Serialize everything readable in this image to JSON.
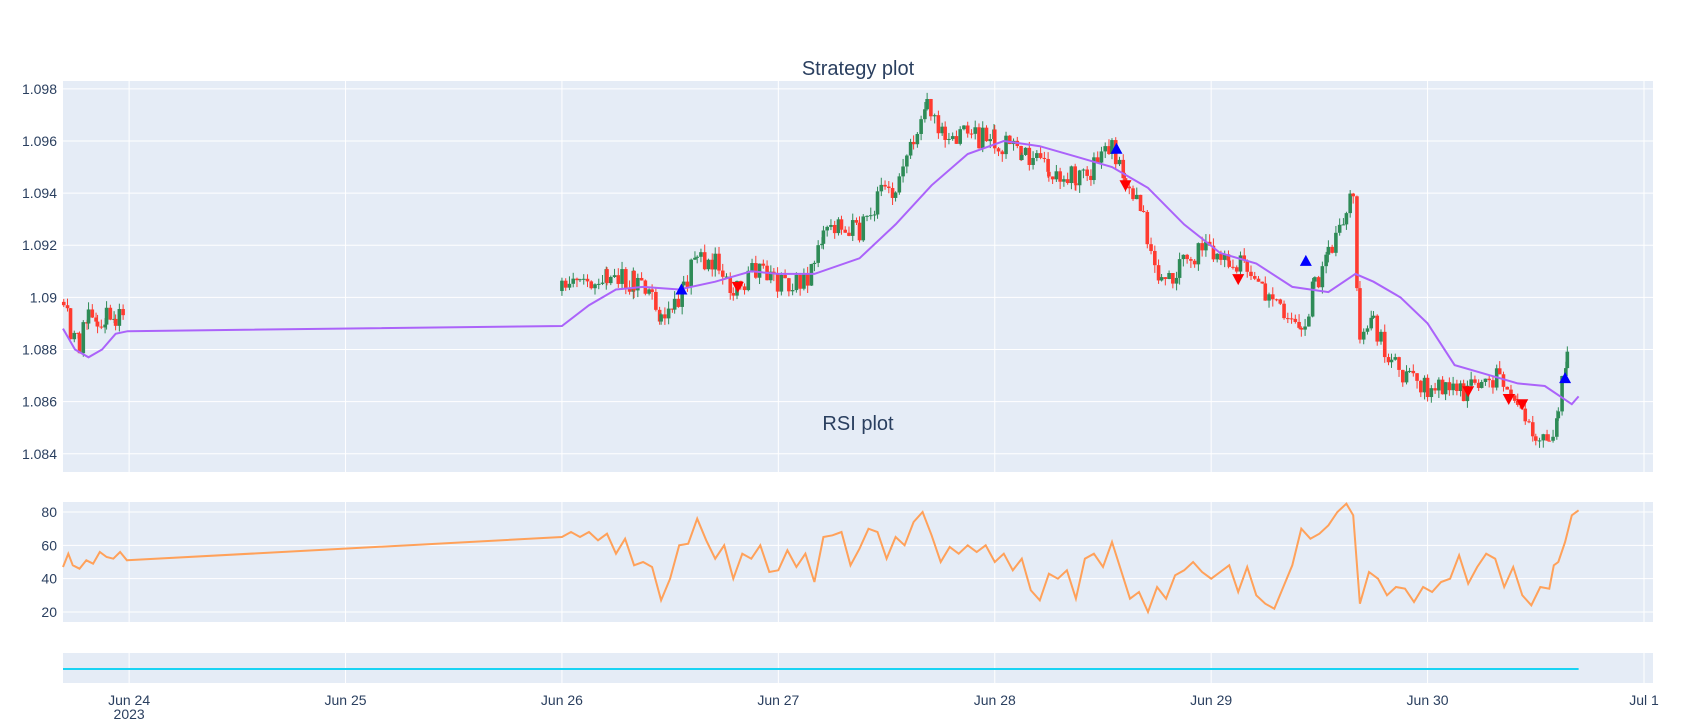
{
  "chart_data": [
    {
      "type": "candlestick",
      "title": "Strategy plot",
      "ylim": [
        1.0833,
        1.0983
      ],
      "y_ticks": [
        "1.084",
        "1.086",
        "1.088",
        "1.09",
        "1.092",
        "1.094",
        "1.096",
        "1.098"
      ],
      "y_tick_values": [
        1.084,
        1.086,
        1.088,
        1.09,
        1.092,
        1.094,
        1.096,
        1.098
      ],
      "x_range": [
        "2023-06-23 16:40",
        "2023-07-01 01:00"
      ],
      "grid": true,
      "colors": {
        "up": "#2e8b57",
        "down": "#ff3b30",
        "ma": "#ab63fa",
        "buy": "#0000ff",
        "sell": "#ff0000"
      },
      "price_path": [
        [
          "2023-06-23 16:45",
          1.09
        ],
        [
          "2023-06-23 17:30",
          1.0885
        ],
        [
          "2023-06-23 18:30",
          1.0882
        ],
        [
          "2023-06-23 19:30",
          1.0893
        ],
        [
          "2023-06-23 20:30",
          1.0891
        ],
        [
          "2023-06-23 21:30",
          1.0892
        ],
        [
          "2023-06-23 22:30",
          1.0893
        ],
        [
          "2023-06-23 23:45",
          1.0892
        ],
        [
          "2023-06-26 00:00",
          1.0902
        ],
        [
          "2023-06-26 02:00",
          1.0905
        ],
        [
          "2023-06-26 05:00",
          1.0907
        ],
        [
          "2023-06-26 08:00",
          1.0906
        ],
        [
          "2023-06-26 10:00",
          1.09
        ],
        [
          "2023-06-26 11:00",
          1.089
        ],
        [
          "2023-06-26 12:30",
          1.0897
        ],
        [
          "2023-06-26 13:30",
          1.0904
        ],
        [
          "2023-06-26 15:00",
          1.0916
        ],
        [
          "2023-06-26 17:00",
          1.0913
        ],
        [
          "2023-06-26 19:00",
          1.0904
        ],
        [
          "2023-06-26 21:30",
          1.091
        ],
        [
          "2023-06-26 23:30",
          1.0906
        ],
        [
          "2023-06-27 02:00",
          1.0907
        ],
        [
          "2023-06-27 04:00",
          1.091
        ],
        [
          "2023-06-27 05:00",
          1.0925
        ],
        [
          "2023-06-27 07:00",
          1.0927
        ],
        [
          "2023-06-27 09:00",
          1.0925
        ],
        [
          "2023-06-27 11:00",
          1.0938
        ],
        [
          "2023-06-27 13:00",
          1.0943
        ],
        [
          "2023-06-27 15:00",
          1.0962
        ],
        [
          "2023-06-27 16:30",
          1.0972
        ],
        [
          "2023-06-27 18:30",
          1.096
        ],
        [
          "2023-06-27 21:00",
          1.0962
        ],
        [
          "2023-06-28 00:00",
          1.0961
        ],
        [
          "2023-06-28 03:00",
          1.0955
        ],
        [
          "2023-06-28 06:00",
          1.095
        ],
        [
          "2023-06-28 09:00",
          1.0945
        ],
        [
          "2023-06-28 11:00",
          1.095
        ],
        [
          "2023-06-28 13:00",
          1.0958
        ],
        [
          "2023-06-28 14:30",
          1.0943
        ],
        [
          "2023-06-28 16:30",
          1.093
        ],
        [
          "2023-06-28 18:30",
          1.0905
        ],
        [
          "2023-06-28 20:30",
          1.0912
        ],
        [
          "2023-06-28 23:00",
          1.0918
        ],
        [
          "2023-06-29 02:00",
          1.0912
        ],
        [
          "2023-06-29 04:00",
          1.0913
        ],
        [
          "2023-06-29 06:00",
          1.0903
        ],
        [
          "2023-06-29 08:30",
          1.089
        ],
        [
          "2023-06-29 10:00",
          1.0886
        ],
        [
          "2023-06-29 11:30",
          1.0905
        ],
        [
          "2023-06-29 13:00",
          1.0915
        ],
        [
          "2023-06-29 15:00",
          1.0935
        ],
        [
          "2023-06-29 15:45",
          1.094
        ],
        [
          "2023-06-29 16:30",
          1.088
        ],
        [
          "2023-06-29 18:00",
          1.089
        ],
        [
          "2023-06-29 20:00",
          1.0875
        ],
        [
          "2023-06-29 22:00",
          1.087
        ],
        [
          "2023-06-30 00:00",
          1.0864
        ],
        [
          "2023-06-30 02:00",
          1.0865
        ],
        [
          "2023-06-30 04:00",
          1.0864
        ],
        [
          "2023-06-30 06:00",
          1.0868
        ],
        [
          "2023-06-30 08:00",
          1.087
        ],
        [
          "2023-06-30 10:00",
          1.0862
        ],
        [
          "2023-06-30 12:00",
          1.0845
        ],
        [
          "2023-06-30 13:30",
          1.0842
        ],
        [
          "2023-06-30 14:30",
          1.0855
        ],
        [
          "2023-06-30 15:30",
          1.088
        ],
        [
          "2023-06-30 15:45",
          1.0905
        ]
      ],
      "moving_average": {
        "name": "",
        "points": [
          [
            "2023-06-23 16:40",
            1.0888
          ],
          [
            "2023-06-23 18:00",
            1.088
          ],
          [
            "2023-06-23 19:30",
            1.0877
          ],
          [
            "2023-06-23 21:00",
            1.088
          ],
          [
            "2023-06-23 22:30",
            1.0886
          ],
          [
            "2023-06-23 23:50",
            1.0887
          ],
          [
            "2023-06-26 00:00",
            1.0889
          ],
          [
            "2023-06-26 03:00",
            1.0897
          ],
          [
            "2023-06-26 06:00",
            1.0903
          ],
          [
            "2023-06-26 09:00",
            1.0904
          ],
          [
            "2023-06-26 13:00",
            1.0903
          ],
          [
            "2023-06-26 17:00",
            1.0906
          ],
          [
            "2023-06-26 21:00",
            1.091
          ],
          [
            "2023-06-27 00:00",
            1.0909
          ],
          [
            "2023-06-27 04:00",
            1.0909
          ],
          [
            "2023-06-27 09:00",
            1.0915
          ],
          [
            "2023-06-27 13:00",
            1.0928
          ],
          [
            "2023-06-27 17:00",
            1.0943
          ],
          [
            "2023-06-27 21:00",
            1.0955
          ],
          [
            "2023-06-28 01:00",
            1.096
          ],
          [
            "2023-06-28 05:00",
            1.0958
          ],
          [
            "2023-06-28 09:00",
            1.0954
          ],
          [
            "2023-06-28 13:00",
            1.095
          ],
          [
            "2023-06-28 17:00",
            1.0942
          ],
          [
            "2023-06-28 21:00",
            1.0928
          ],
          [
            "2023-06-29 01:00",
            1.0917
          ],
          [
            "2023-06-29 05:00",
            1.0913
          ],
          [
            "2023-06-29 09:00",
            1.0904
          ],
          [
            "2023-06-29 13:00",
            1.0902
          ],
          [
            "2023-06-29 16:00",
            1.0909
          ],
          [
            "2023-06-29 18:00",
            1.0906
          ],
          [
            "2023-06-29 21:00",
            1.09
          ],
          [
            "2023-06-30 00:00",
            1.089
          ],
          [
            "2023-06-30 03:00",
            1.0874
          ],
          [
            "2023-06-30 06:00",
            1.0871
          ],
          [
            "2023-06-30 10:00",
            1.0867
          ],
          [
            "2023-06-30 13:00",
            1.0866
          ],
          [
            "2023-06-30 16:00",
            1.0859
          ],
          [
            "2023-06-30 16:45",
            1.0862
          ]
        ]
      },
      "signals": [
        {
          "type": "buy",
          "time": "2023-06-26 13:15",
          "price": 1.0903
        },
        {
          "type": "sell",
          "time": "2023-06-26 19:30",
          "price": 1.0904
        },
        {
          "type": "buy",
          "time": "2023-06-28 13:30",
          "price": 1.0957
        },
        {
          "type": "sell",
          "time": "2023-06-28 14:30",
          "price": 1.0943
        },
        {
          "type": "sell",
          "time": "2023-06-29 03:00",
          "price": 1.0907
        },
        {
          "type": "buy",
          "time": "2023-06-29 10:30",
          "price": 1.0914
        },
        {
          "type": "sell",
          "time": "2023-06-30 04:30",
          "price": 1.0864
        },
        {
          "type": "sell",
          "time": "2023-06-30 09:00",
          "price": 1.0861
        },
        {
          "type": "sell",
          "time": "2023-06-30 10:30",
          "price": 1.0859
        },
        {
          "type": "buy",
          "time": "2023-06-30 15:15",
          "price": 1.0869
        }
      ]
    },
    {
      "type": "line",
      "title": "RSI plot",
      "ylim": [
        14,
        86
      ],
      "y_ticks": [
        "20",
        "40",
        "60",
        "80"
      ],
      "y_tick_values": [
        20,
        40,
        60,
        80
      ],
      "grid": true,
      "color": "#ffa15a",
      "points": [
        [
          "2023-06-23 16:40",
          47
        ],
        [
          "2023-06-23 17:15",
          55
        ],
        [
          "2023-06-23 17:45",
          48
        ],
        [
          "2023-06-23 18:30",
          46
        ],
        [
          "2023-06-23 19:15",
          51
        ],
        [
          "2023-06-23 20:00",
          49
        ],
        [
          "2023-06-23 20:45",
          56
        ],
        [
          "2023-06-23 21:30",
          53
        ],
        [
          "2023-06-23 22:15",
          52
        ],
        [
          "2023-06-23 23:00",
          56
        ],
        [
          "2023-06-23 23:45",
          51
        ],
        [
          "2023-06-26 00:00",
          65
        ],
        [
          "2023-06-26 01:00",
          68
        ],
        [
          "2023-06-26 02:00",
          65
        ],
        [
          "2023-06-26 03:00",
          68
        ],
        [
          "2023-06-26 04:00",
          63
        ],
        [
          "2023-06-26 05:00",
          67
        ],
        [
          "2023-06-26 06:00",
          55
        ],
        [
          "2023-06-26 07:00",
          64
        ],
        [
          "2023-06-26 08:00",
          48
        ],
        [
          "2023-06-26 09:00",
          50
        ],
        [
          "2023-06-26 10:00",
          47
        ],
        [
          "2023-06-26 11:00",
          27
        ],
        [
          "2023-06-26 12:00",
          40
        ],
        [
          "2023-06-26 13:00",
          60
        ],
        [
          "2023-06-26 14:00",
          61
        ],
        [
          "2023-06-26 15:00",
          76
        ],
        [
          "2023-06-26 16:00",
          63
        ],
        [
          "2023-06-26 17:00",
          52
        ],
        [
          "2023-06-26 18:00",
          60
        ],
        [
          "2023-06-26 19:00",
          40
        ],
        [
          "2023-06-26 20:00",
          55
        ],
        [
          "2023-06-26 21:00",
          52
        ],
        [
          "2023-06-26 22:00",
          60
        ],
        [
          "2023-06-26 23:00",
          44
        ],
        [
          "2023-06-27 00:00",
          45
        ],
        [
          "2023-06-27 01:00",
          57
        ],
        [
          "2023-06-27 02:00",
          47
        ],
        [
          "2023-06-27 03:00",
          55
        ],
        [
          "2023-06-27 04:00",
          38
        ],
        [
          "2023-06-27 05:00",
          65
        ],
        [
          "2023-06-27 06:00",
          66
        ],
        [
          "2023-06-27 07:00",
          68
        ],
        [
          "2023-06-27 08:00",
          48
        ],
        [
          "2023-06-27 09:00",
          58
        ],
        [
          "2023-06-27 10:00",
          70
        ],
        [
          "2023-06-27 11:00",
          68
        ],
        [
          "2023-06-27 12:00",
          52
        ],
        [
          "2023-06-27 13:00",
          65
        ],
        [
          "2023-06-27 14:00",
          60
        ],
        [
          "2023-06-27 15:00",
          74
        ],
        [
          "2023-06-27 16:00",
          80
        ],
        [
          "2023-06-27 17:00",
          66
        ],
        [
          "2023-06-27 18:00",
          50
        ],
        [
          "2023-06-27 19:00",
          59
        ],
        [
          "2023-06-27 20:00",
          55
        ],
        [
          "2023-06-27 21:00",
          60
        ],
        [
          "2023-06-27 22:00",
          56
        ],
        [
          "2023-06-27 23:00",
          60
        ],
        [
          "2023-06-28 00:00",
          50
        ],
        [
          "2023-06-28 01:00",
          55
        ],
        [
          "2023-06-28 02:00",
          45
        ],
        [
          "2023-06-28 03:00",
          52
        ],
        [
          "2023-06-28 04:00",
          33
        ],
        [
          "2023-06-28 05:00",
          27
        ],
        [
          "2023-06-28 06:00",
          43
        ],
        [
          "2023-06-28 07:00",
          40
        ],
        [
          "2023-06-28 08:00",
          45
        ],
        [
          "2023-06-28 09:00",
          28
        ],
        [
          "2023-06-28 10:00",
          52
        ],
        [
          "2023-06-28 11:00",
          55
        ],
        [
          "2023-06-28 12:00",
          47
        ],
        [
          "2023-06-28 13:00",
          62
        ],
        [
          "2023-06-28 14:00",
          45
        ],
        [
          "2023-06-28 15:00",
          28
        ],
        [
          "2023-06-28 16:00",
          32
        ],
        [
          "2023-06-28 17:00",
          20
        ],
        [
          "2023-06-28 18:00",
          35
        ],
        [
          "2023-06-28 19:00",
          28
        ],
        [
          "2023-06-28 20:00",
          42
        ],
        [
          "2023-06-28 21:00",
          45
        ],
        [
          "2023-06-28 22:00",
          50
        ],
        [
          "2023-06-28 23:00",
          44
        ],
        [
          "2023-06-29 00:00",
          40
        ],
        [
          "2023-06-29 01:00",
          44
        ],
        [
          "2023-06-29 02:00",
          48
        ],
        [
          "2023-06-29 03:00",
          32
        ],
        [
          "2023-06-29 04:00",
          47
        ],
        [
          "2023-06-29 05:00",
          30
        ],
        [
          "2023-06-29 06:00",
          25
        ],
        [
          "2023-06-29 07:00",
          22
        ],
        [
          "2023-06-29 08:00",
          35
        ],
        [
          "2023-06-29 09:00",
          48
        ],
        [
          "2023-06-29 10:00",
          70
        ],
        [
          "2023-06-29 11:00",
          64
        ],
        [
          "2023-06-29 12:00",
          67
        ],
        [
          "2023-06-29 13:00",
          72
        ],
        [
          "2023-06-29 14:00",
          80
        ],
        [
          "2023-06-29 15:00",
          85
        ],
        [
          "2023-06-29 15:45",
          78
        ],
        [
          "2023-06-29 16:30",
          25
        ],
        [
          "2023-06-29 17:30",
          44
        ],
        [
          "2023-06-29 18:30",
          40
        ],
        [
          "2023-06-29 19:30",
          30
        ],
        [
          "2023-06-29 20:30",
          35
        ],
        [
          "2023-06-29 21:30",
          34
        ],
        [
          "2023-06-29 22:30",
          26
        ],
        [
          "2023-06-29 23:30",
          35
        ],
        [
          "2023-06-30 00:30",
          32
        ],
        [
          "2023-06-30 01:30",
          38
        ],
        [
          "2023-06-30 02:30",
          40
        ],
        [
          "2023-06-30 03:30",
          54
        ],
        [
          "2023-06-30 04:30",
          37
        ],
        [
          "2023-06-30 05:30",
          47
        ],
        [
          "2023-06-30 06:30",
          55
        ],
        [
          "2023-06-30 07:30",
          52
        ],
        [
          "2023-06-30 08:30",
          35
        ],
        [
          "2023-06-30 09:30",
          47
        ],
        [
          "2023-06-30 10:30",
          30
        ],
        [
          "2023-06-30 11:30",
          24
        ],
        [
          "2023-06-30 12:30",
          35
        ],
        [
          "2023-06-30 13:30",
          34
        ],
        [
          "2023-06-30 14:00",
          48
        ],
        [
          "2023-06-30 14:30",
          50
        ],
        [
          "2023-06-30 15:15",
          62
        ],
        [
          "2023-06-30 16:00",
          78
        ],
        [
          "2023-06-30 16:45",
          81
        ]
      ]
    },
    {
      "type": "line",
      "title": "",
      "color": "#19d3f3",
      "points": [
        [
          "2023-06-23 16:40",
          0
        ],
        [
          "2023-06-30 16:45",
          0
        ]
      ]
    }
  ],
  "x_axis": {
    "range": [
      "2023-06-23 16:40",
      "2023-07-01 01:00"
    ],
    "ticks": [
      {
        "time": "2023-06-24 00:00",
        "label": "Jun 24",
        "sublabel": "2023"
      },
      {
        "time": "2023-06-25 00:00",
        "label": "Jun 25",
        "sublabel": ""
      },
      {
        "time": "2023-06-26 00:00",
        "label": "Jun 26",
        "sublabel": ""
      },
      {
        "time": "2023-06-27 00:00",
        "label": "Jun 27",
        "sublabel": ""
      },
      {
        "time": "2023-06-28 00:00",
        "label": "Jun 28",
        "sublabel": ""
      },
      {
        "time": "2023-06-29 00:00",
        "label": "Jun 29",
        "sublabel": ""
      },
      {
        "time": "2023-06-30 00:00",
        "label": "Jun 30",
        "sublabel": ""
      },
      {
        "time": "2023-07-01 00:00",
        "label": "Jul 1",
        "sublabel": ""
      }
    ]
  },
  "style": {
    "plot_bg": "#e5ecf6",
    "grid": "#ffffff",
    "text": "#2a3f5f"
  }
}
